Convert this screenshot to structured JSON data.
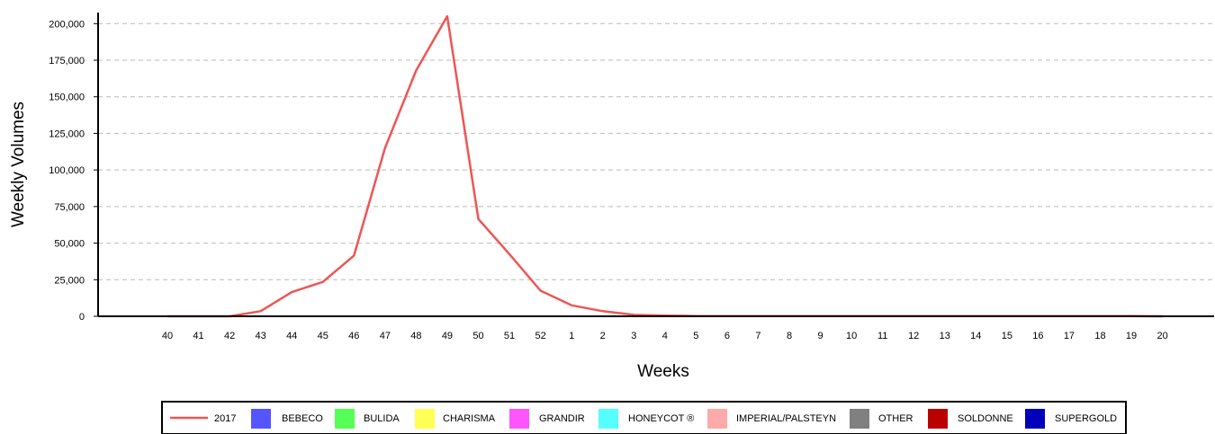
{
  "chart_data": {
    "type": "line",
    "xlabel": "Weeks",
    "ylabel": "Weekly Volumes",
    "categories": [
      "40",
      "41",
      "42",
      "43",
      "44",
      "45",
      "46",
      "47",
      "48",
      "49",
      "50",
      "51",
      "52",
      "1",
      "2",
      "3",
      "4",
      "5",
      "6",
      "7",
      "8",
      "9",
      "10",
      "11",
      "12",
      "13",
      "14",
      "15",
      "16",
      "17",
      "18",
      "19",
      "20"
    ],
    "yticks": [
      "0",
      "25,000",
      "50,000",
      "75,000",
      "100,000",
      "125,000",
      "150,000",
      "175,000",
      "200,000"
    ],
    "ylim": [
      0,
      210000
    ],
    "grid": "horizontal-dashed",
    "legend_position": "bottom",
    "series": [
      {
        "name": "2017",
        "legend": "line",
        "color": "#ee5555",
        "values": [
          0,
          0,
          0,
          3500,
          16500,
          23500,
          41500,
          115000,
          168000,
          205000,
          66500,
          42500,
          17500,
          7500,
          3500,
          1000,
          500,
          200,
          100,
          100,
          100,
          100,
          100,
          100,
          100,
          100,
          100,
          100,
          100,
          100,
          100,
          100,
          0
        ]
      },
      {
        "name": "BEBECO",
        "legend": "box",
        "color": "#5555ff",
        "values": [
          0,
          0,
          0,
          0,
          0,
          0,
          0,
          0,
          0,
          0,
          0,
          0,
          0,
          0,
          0,
          0,
          0,
          0,
          0,
          0,
          0,
          0,
          0,
          0,
          0,
          0,
          0,
          0,
          0,
          0,
          0,
          0,
          0
        ]
      },
      {
        "name": "BULIDA",
        "legend": "box",
        "color": "#55ff55",
        "values": [
          0,
          0,
          0,
          0,
          0,
          0,
          0,
          0,
          0,
          0,
          0,
          0,
          0,
          0,
          0,
          0,
          0,
          0,
          0,
          0,
          0,
          0,
          0,
          0,
          0,
          0,
          0,
          0,
          0,
          0,
          0,
          0,
          0
        ]
      },
      {
        "name": "CHARISMA",
        "legend": "box",
        "color": "#ffff55",
        "values": [
          0,
          0,
          0,
          0,
          0,
          0,
          0,
          0,
          0,
          0,
          0,
          0,
          0,
          0,
          0,
          0,
          0,
          0,
          0,
          0,
          0,
          0,
          0,
          0,
          0,
          0,
          0,
          0,
          0,
          0,
          0,
          0,
          0
        ]
      },
      {
        "name": "GRANDIR",
        "legend": "box",
        "color": "#ff55ff",
        "values": [
          0,
          0,
          0,
          0,
          0,
          0,
          0,
          0,
          0,
          0,
          0,
          0,
          0,
          0,
          0,
          0,
          0,
          0,
          0,
          0,
          0,
          0,
          0,
          0,
          0,
          0,
          0,
          0,
          0,
          0,
          0,
          0,
          0
        ]
      },
      {
        "name": "HONEYCOT ®",
        "legend": "box",
        "color": "#55ffff",
        "values": [
          0,
          0,
          0,
          0,
          0,
          0,
          0,
          0,
          0,
          0,
          0,
          0,
          0,
          0,
          0,
          0,
          0,
          0,
          0,
          0,
          0,
          0,
          0,
          0,
          0,
          0,
          0,
          0,
          0,
          0,
          0,
          0,
          0
        ]
      },
      {
        "name": "IMPERIAL/PALSTEYN",
        "legend": "box",
        "color": "#ffaaaa",
        "values": [
          0,
          0,
          0,
          0,
          0,
          0,
          0,
          0,
          0,
          0,
          0,
          0,
          0,
          0,
          0,
          0,
          0,
          0,
          0,
          0,
          0,
          0,
          0,
          0,
          0,
          0,
          0,
          0,
          0,
          0,
          0,
          0,
          0
        ]
      },
      {
        "name": "OTHER",
        "legend": "box",
        "color": "#808080",
        "values": [
          0,
          0,
          0,
          0,
          0,
          0,
          0,
          0,
          0,
          0,
          0,
          0,
          0,
          0,
          0,
          0,
          0,
          0,
          0,
          0,
          0,
          0,
          0,
          0,
          0,
          0,
          0,
          0,
          0,
          0,
          0,
          0,
          0
        ]
      },
      {
        "name": "SOLDONNE",
        "legend": "box",
        "color": "#bb0000",
        "values": [
          0,
          0,
          0,
          0,
          0,
          0,
          0,
          0,
          0,
          0,
          0,
          0,
          0,
          0,
          0,
          0,
          0,
          0,
          0,
          0,
          0,
          0,
          0,
          0,
          0,
          0,
          0,
          0,
          0,
          0,
          0,
          0,
          0
        ]
      },
      {
        "name": "SUPERGOLD",
        "legend": "box",
        "color": "#0000bb",
        "values": [
          0,
          0,
          0,
          0,
          0,
          0,
          0,
          0,
          0,
          0,
          0,
          0,
          0,
          0,
          0,
          0,
          0,
          0,
          0,
          0,
          0,
          0,
          0,
          0,
          0,
          0,
          0,
          0,
          0,
          0,
          0,
          0,
          0
        ]
      }
    ]
  }
}
